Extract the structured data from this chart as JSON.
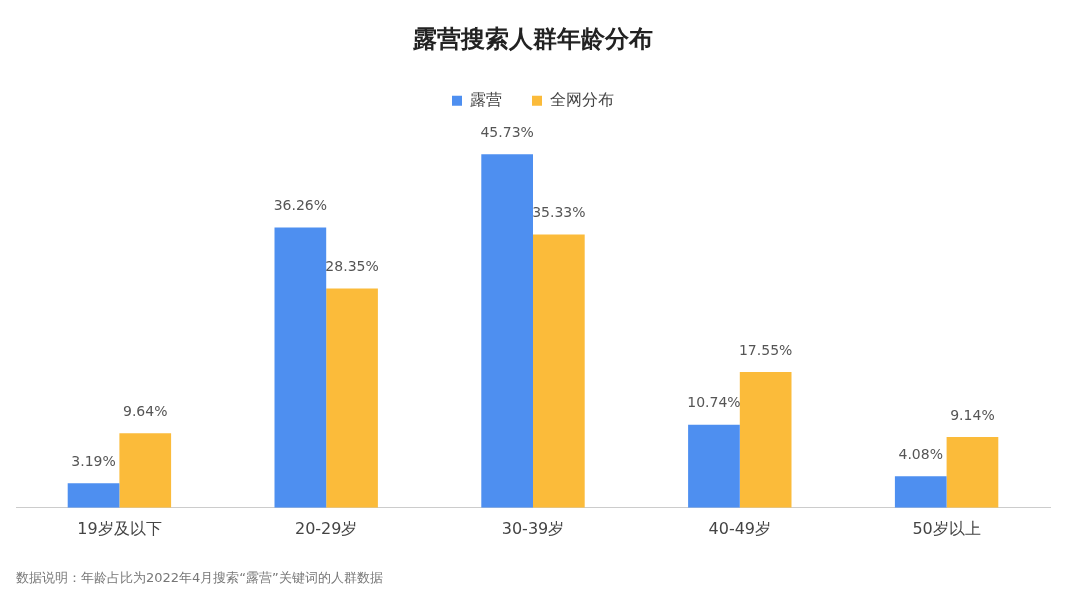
{
  "chart_data": {
    "type": "bar",
    "title": "露营搜索人群年龄分布",
    "categories": [
      "19岁及以下",
      "20-29岁",
      "30-39岁",
      "40-49岁",
      "50岁以上"
    ],
    "series": [
      {
        "name": "露营",
        "color": "#4e8ff0",
        "values": [
          3.19,
          36.26,
          45.73,
          10.74,
          4.08
        ],
        "value_labels": [
          "3.19%",
          "36.26%",
          "45.73%",
          "10.74%",
          "4.08%"
        ]
      },
      {
        "name": "全网分布",
        "color": "#fbbb3a",
        "values": [
          9.64,
          28.35,
          35.33,
          17.55,
          9.14
        ],
        "value_labels": [
          "9.64%",
          "28.35%",
          "35.33%",
          "17.55%",
          "9.14%"
        ]
      }
    ],
    "legend": "top",
    "grid": false,
    "tick_labels": "x",
    "annotations": [
      "数据说明：年龄占比为2022年4月搜索“露营”关键词的人群数据"
    ]
  }
}
